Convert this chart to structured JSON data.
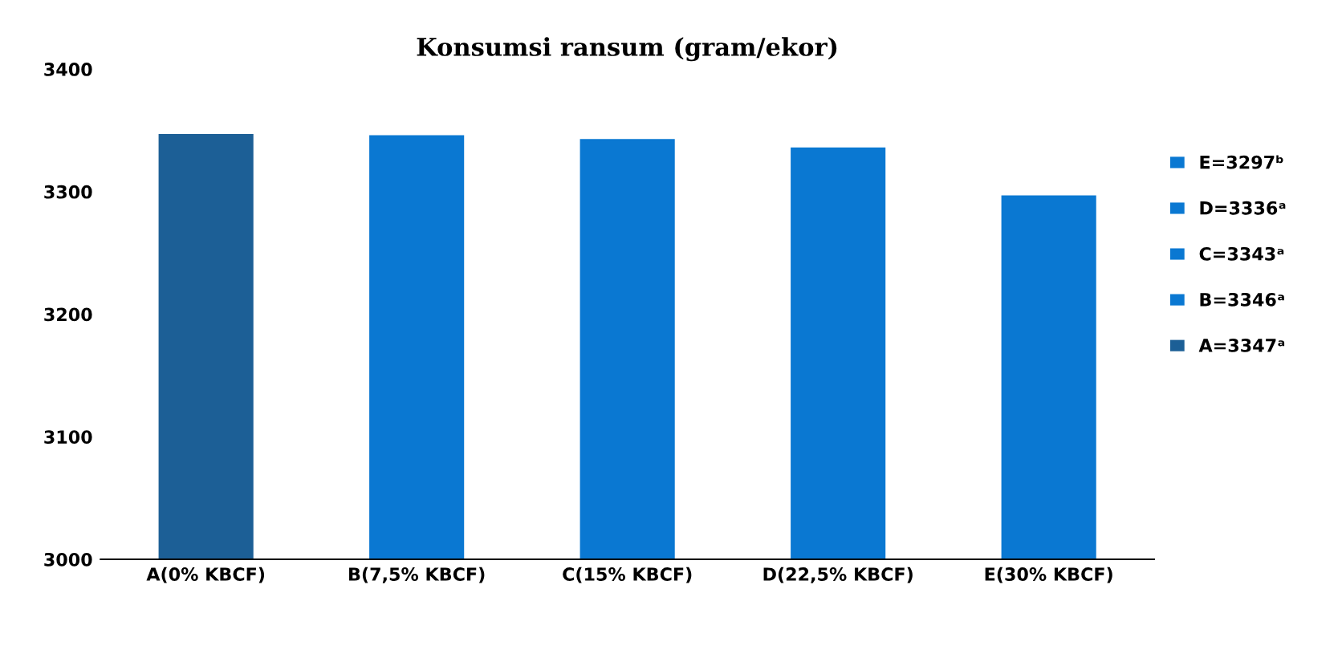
{
  "chart_data": {
    "type": "bar",
    "title": "Konsumsi ransum (gram/ekor)",
    "categories": [
      "A(0% KBCF)",
      "B(7,5% KBCF)",
      "C(15% KBCF)",
      "D(22,5% KBCF)",
      "E(30% KBCF)"
    ],
    "series": [
      {
        "name": "A=3347ᵃ",
        "color": "#1c5f96",
        "values": [
          3347,
          null,
          null,
          null,
          null
        ]
      },
      {
        "name": "B=3346ᵃ",
        "color": "#0a78d2",
        "values": [
          null,
          3346,
          null,
          null,
          null
        ]
      },
      {
        "name": "C=3343ᵃ",
        "color": "#0a78d2",
        "values": [
          null,
          null,
          3343,
          null,
          null
        ]
      },
      {
        "name": "D=3336ᵃ",
        "color": "#0a78d2",
        "values": [
          null,
          null,
          null,
          3336,
          null
        ]
      },
      {
        "name": "E=3297ᵇ",
        "color": "#0a78d2",
        "values": [
          null,
          null,
          null,
          null,
          3297
        ]
      }
    ],
    "stacked": true,
    "ylim": [
      3000,
      3400
    ],
    "yticks": [
      3000,
      3100,
      3200,
      3300,
      3400
    ],
    "grid": false,
    "legend": "right"
  }
}
